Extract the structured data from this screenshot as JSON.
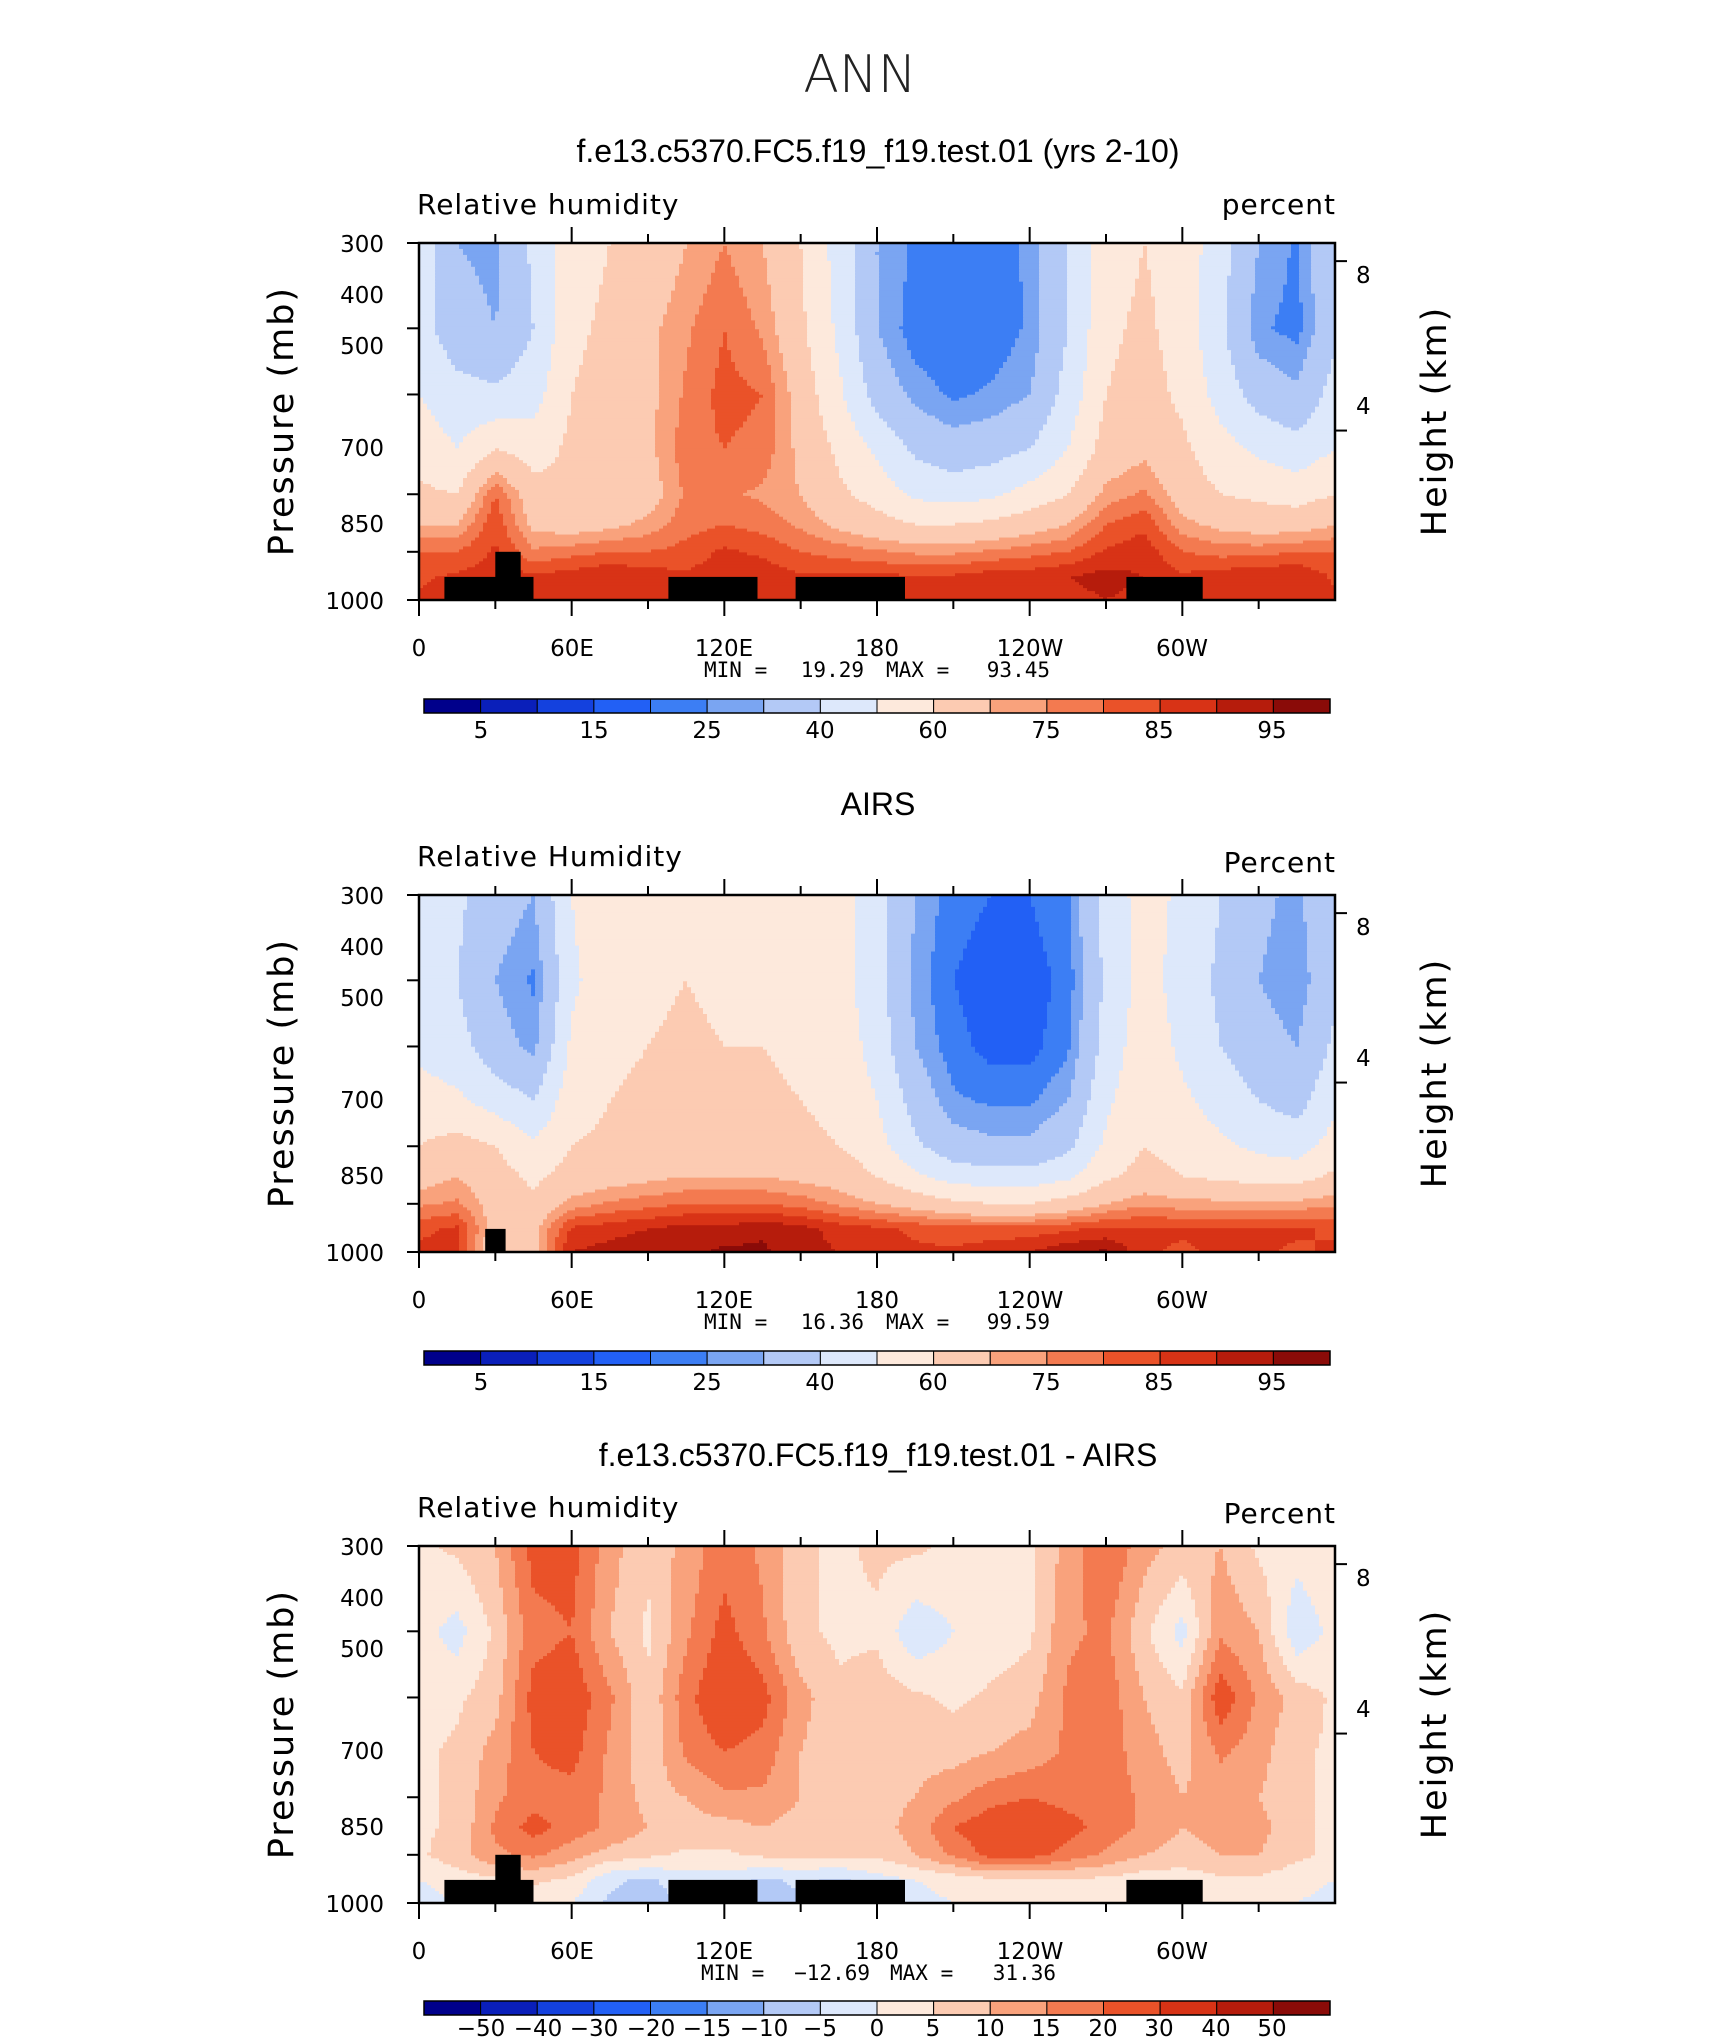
{
  "figure": {
    "title": "ANN",
    "colors": {
      "diverging": [
        "#00008b",
        "#0a1fba",
        "#1441de",
        "#2260f5",
        "#3c7ef4",
        "#7aa5f2",
        "#b3c9f6",
        "#dde8fb",
        "#fde9dc",
        "#fccbb2",
        "#f9a27c",
        "#f37a50",
        "#ea5229",
        "#d83316",
        "#b61c0c",
        "#8a0b08"
      ],
      "land_mask": "#000000"
    }
  },
  "panels": [
    {
      "title": "f.e13.c5370.FC5.f19_f19.test.01 (yrs 2-10)",
      "variable_label": "Relative humidity",
      "units_label": "percent",
      "ylabel": "Pressure (mb)",
      "ylabel_right": "Height (km)",
      "xticks": [
        "0",
        "60E",
        "120E",
        "180",
        "120W",
        "60W"
      ],
      "yticks": [
        "300",
        "400",
        "500",
        "700",
        "850",
        "1000"
      ],
      "yticks_right": [
        "8",
        "4"
      ],
      "min_label": "MIN =",
      "min_value": "19.29",
      "max_label": "MAX =",
      "max_value": "93.45",
      "colorbar_labels": [
        "5",
        "15",
        "25",
        "40",
        "60",
        "75",
        "85",
        "95"
      ]
    },
    {
      "title": "AIRS",
      "variable_label": "Relative Humidity",
      "units_label": "Percent",
      "ylabel": "Pressure (mb)",
      "ylabel_right": "Height (km)",
      "xticks": [
        "0",
        "60E",
        "120E",
        "180",
        "120W",
        "60W"
      ],
      "yticks": [
        "300",
        "400",
        "500",
        "700",
        "850",
        "1000"
      ],
      "yticks_right": [
        "8",
        "4"
      ],
      "min_label": "MIN =",
      "min_value": "16.36",
      "max_label": "MAX =",
      "max_value": "99.59",
      "colorbar_labels": [
        "5",
        "15",
        "25",
        "40",
        "60",
        "75",
        "85",
        "95"
      ]
    },
    {
      "title": "f.e13.c5370.FC5.f19_f19.test.01 - AIRS",
      "variable_label": "Relative humidity",
      "units_label": "Percent",
      "ylabel": "Pressure (mb)",
      "ylabel_right": "Height (km)",
      "xticks": [
        "0",
        "60E",
        "120E",
        "180",
        "120W",
        "60W"
      ],
      "yticks": [
        "300",
        "400",
        "500",
        "700",
        "850",
        "1000"
      ],
      "yticks_right": [
        "8",
        "4"
      ],
      "min_label": "MIN =",
      "min_value": "−12.69",
      "max_label": "MAX =",
      "max_value": "31.36",
      "colorbar_labels": [
        "−50",
        "−40",
        "−30",
        "−20",
        "−15",
        "−10",
        "−5",
        "0",
        "5",
        "10",
        "15",
        "20",
        "30",
        "40",
        "50"
      ]
    }
  ],
  "chart_data": [
    {
      "type": "heatmap",
      "title": "f.e13.c5370.FC5.f19_f19.test.01 (yrs 2-10)",
      "xlabel": "",
      "ylabel": "Pressure (mb)",
      "xlim": [
        0,
        360
      ],
      "ylim": [
        1000,
        300
      ],
      "y_scale": "log",
      "xticks": [
        0,
        60,
        120,
        180,
        240,
        300
      ],
      "yticks": [
        300,
        400,
        500,
        700,
        850,
        1000
      ],
      "levels": [
        5,
        10,
        15,
        20,
        25,
        30,
        40,
        50,
        60,
        70,
        75,
        80,
        85,
        90,
        95
      ],
      "min": 19.29,
      "max": 93.45,
      "grid_lon": [
        0,
        15,
        30,
        45,
        60,
        75,
        90,
        105,
        120,
        135,
        150,
        165,
        180,
        195,
        210,
        225,
        240,
        255,
        270,
        285,
        300,
        315,
        330,
        345,
        360
      ],
      "grid_p": [
        300,
        400,
        500,
        600,
        700,
        775,
        850,
        925,
        1000
      ],
      "values": [
        [
          48,
          30,
          28,
          42,
          56,
          60,
          64,
          70,
          75,
          70,
          60,
          46,
          30,
          24,
          22,
          22,
          26,
          40,
          56,
          60,
          56,
          44,
          30,
          24,
          40
        ],
        [
          44,
          34,
          30,
          40,
          58,
          62,
          68,
          74,
          80,
          74,
          62,
          48,
          30,
          22,
          20,
          21,
          26,
          40,
          58,
          62,
          56,
          42,
          26,
          23,
          38
        ],
        [
          50,
          44,
          42,
          46,
          60,
          64,
          68,
          76,
          82,
          80,
          66,
          52,
          36,
          28,
          24,
          26,
          30,
          44,
          60,
          64,
          58,
          46,
          36,
          32,
          44
        ],
        [
          56,
          50,
          60,
          56,
          62,
          64,
          68,
          78,
          80,
          78,
          68,
          58,
          48,
          38,
          34,
          36,
          40,
          50,
          64,
          68,
          62,
          54,
          48,
          44,
          50
        ],
        [
          62,
          60,
          80,
          64,
          60,
          62,
          66,
          76,
          76,
          74,
          70,
          62,
          56,
          48,
          46,
          48,
          54,
          60,
          72,
          76,
          66,
          60,
          58,
          56,
          60
        ],
        [
          70,
          70,
          84,
          68,
          66,
          68,
          72,
          78,
          80,
          78,
          74,
          68,
          64,
          60,
          60,
          62,
          66,
          70,
          80,
          84,
          72,
          68,
          66,
          66,
          70
        ],
        [
          80,
          80,
          86,
          76,
          78,
          80,
          80,
          82,
          86,
          84,
          80,
          78,
          76,
          74,
          74,
          76,
          78,
          80,
          86,
          88,
          80,
          78,
          78,
          80,
          80
        ],
        [
          84,
          86,
          88,
          86,
          88,
          90,
          88,
          86,
          88,
          88,
          86,
          86,
          86,
          86,
          86,
          88,
          88,
          90,
          92,
          90,
          86,
          88,
          90,
          90,
          84
        ],
        [
          86,
          88,
          88,
          88,
          88,
          88,
          88,
          86,
          86,
          86,
          86,
          86,
          86,
          86,
          86,
          86,
          86,
          88,
          90,
          88,
          86,
          88,
          88,
          88,
          86
        ]
      ],
      "land": [
        [
          10,
          45,
          925,
          1000
        ],
        [
          30,
          40,
          850,
          1000
        ],
        [
          98,
          133,
          925,
          1000
        ],
        [
          148,
          191,
          925,
          1000
        ],
        [
          278,
          308,
          925,
          1000
        ]
      ]
    },
    {
      "type": "heatmap",
      "title": "AIRS",
      "xlabel": "",
      "ylabel": "Pressure (mb)",
      "xlim": [
        0,
        360
      ],
      "ylim": [
        1000,
        300
      ],
      "y_scale": "log",
      "xticks": [
        0,
        60,
        120,
        180,
        240,
        300
      ],
      "yticks": [
        300,
        400,
        500,
        700,
        850,
        1000
      ],
      "levels": [
        5,
        10,
        15,
        20,
        25,
        30,
        40,
        50,
        60,
        70,
        75,
        80,
        85,
        90,
        95
      ],
      "min": 16.36,
      "max": 99.59,
      "grid_lon": [
        0,
        15,
        30,
        45,
        60,
        75,
        90,
        105,
        120,
        135,
        150,
        165,
        180,
        195,
        210,
        225,
        240,
        255,
        270,
        285,
        300,
        315,
        330,
        345,
        360
      ],
      "grid_p": [
        300,
        400,
        500,
        600,
        700,
        775,
        850,
        925,
        1000
      ],
      "values": [
        [
          46,
          42,
          34,
          30,
          50,
          58,
          58,
          60,
          58,
          58,
          56,
          54,
          44,
          30,
          22,
          20,
          20,
          24,
          44,
          54,
          48,
          40,
          32,
          28,
          40
        ],
        [
          44,
          40,
          30,
          24,
          48,
          56,
          58,
          60,
          58,
          58,
          56,
          54,
          44,
          28,
          20,
          17,
          17,
          22,
          42,
          54,
          46,
          38,
          30,
          26,
          38
        ],
        [
          48,
          44,
          34,
          28,
          52,
          58,
          60,
          62,
          60,
          60,
          58,
          56,
          46,
          30,
          22,
          18,
          18,
          24,
          44,
          56,
          48,
          40,
          34,
          30,
          42
        ],
        [
          54,
          52,
          46,
          40,
          56,
          60,
          62,
          64,
          62,
          62,
          60,
          58,
          50,
          36,
          26,
          24,
          24,
          30,
          48,
          58,
          52,
          46,
          40,
          36,
          48
        ],
        [
          60,
          64,
          60,
          52,
          60,
          62,
          64,
          66,
          64,
          64,
          62,
          60,
          54,
          42,
          34,
          32,
          32,
          38,
          52,
          60,
          56,
          52,
          48,
          46,
          54
        ],
        [
          66,
          70,
          64,
          58,
          64,
          66,
          68,
          70,
          70,
          70,
          68,
          66,
          60,
          52,
          46,
          44,
          44,
          48,
          58,
          64,
          60,
          58,
          56,
          56,
          62
        ],
        [
          74,
          76,
          66,
          62,
          72,
          76,
          78,
          80,
          80,
          80,
          78,
          74,
          70,
          66,
          62,
          60,
          60,
          64,
          70,
          74,
          72,
          72,
          72,
          72,
          74
        ],
        [
          84,
          86,
          66,
          68,
          86,
          88,
          90,
          92,
          92,
          94,
          92,
          88,
          86,
          84,
          82,
          82,
          82,
          84,
          86,
          86,
          86,
          86,
          86,
          86,
          84
        ],
        [
          86,
          86,
          60,
          68,
          90,
          92,
          94,
          94,
          96,
          96,
          92,
          90,
          88,
          86,
          86,
          88,
          90,
          94,
          96,
          86,
          84,
          86,
          86,
          84,
          86
        ]
      ],
      "land": [
        [
          26,
          34,
          925,
          1000
        ]
      ]
    },
    {
      "type": "heatmap",
      "title": "f.e13.c5370.FC5.f19_f19.test.01 - AIRS",
      "xlabel": "",
      "ylabel": "Pressure (mb)",
      "xlim": [
        0,
        360
      ],
      "ylim": [
        1000,
        300
      ],
      "y_scale": "log",
      "xticks": [
        0,
        60,
        120,
        180,
        240,
        300
      ],
      "yticks": [
        300,
        400,
        500,
        700,
        850,
        1000
      ],
      "levels": [
        -50,
        -40,
        -30,
        -20,
        -15,
        -10,
        -5,
        0,
        5,
        10,
        15,
        20,
        30,
        40,
        50
      ],
      "min": -12.69,
      "max": 31.36,
      "grid_lon": [
        0,
        15,
        30,
        45,
        60,
        75,
        90,
        105,
        120,
        135,
        150,
        165,
        180,
        195,
        210,
        225,
        240,
        255,
        270,
        285,
        300,
        315,
        330,
        345,
        360
      ],
      "grid_p": [
        300,
        400,
        500,
        600,
        700,
        775,
        850,
        925,
        1000
      ],
      "values": [
        [
          4,
          6,
          10,
          22,
          22,
          12,
          6,
          12,
          18,
          14,
          6,
          4,
          6,
          6,
          4,
          4,
          4,
          12,
          20,
          12,
          8,
          10,
          4,
          2,
          4
        ],
        [
          2,
          -2,
          6,
          18,
          20,
          10,
          4,
          14,
          22,
          16,
          6,
          4,
          4,
          -4,
          0,
          2,
          4,
          14,
          16,
          6,
          -2,
          14,
          10,
          -4,
          2
        ],
        [
          2,
          4,
          8,
          22,
          24,
          16,
          6,
          18,
          26,
          22,
          12,
          6,
          8,
          6,
          4,
          6,
          8,
          16,
          18,
          10,
          6,
          24,
          14,
          8,
          4
        ],
        [
          4,
          6,
          12,
          20,
          22,
          14,
          6,
          16,
          20,
          18,
          10,
          6,
          8,
          8,
          8,
          10,
          12,
          16,
          18,
          12,
          8,
          16,
          12,
          6,
          4
        ],
        [
          4,
          6,
          14,
          18,
          18,
          14,
          8,
          10,
          14,
          14,
          10,
          6,
          8,
          10,
          14,
          18,
          20,
          18,
          18,
          14,
          10,
          12,
          10,
          6,
          4
        ],
        [
          4,
          6,
          16,
          22,
          18,
          14,
          10,
          8,
          8,
          10,
          8,
          6,
          8,
          12,
          20,
          24,
          26,
          22,
          18,
          14,
          10,
          12,
          12,
          6,
          4
        ],
        [
          4,
          8,
          14,
          16,
          12,
          8,
          6,
          4,
          4,
          6,
          6,
          6,
          6,
          10,
          16,
          22,
          22,
          18,
          14,
          10,
          8,
          10,
          10,
          6,
          4
        ],
        [
          0,
          2,
          4,
          6,
          4,
          -4,
          -6,
          -2,
          -2,
          -6,
          -4,
          -6,
          -2,
          0,
          2,
          4,
          4,
          4,
          4,
          2,
          2,
          4,
          4,
          2,
          0
        ],
        [
          -2,
          0,
          2,
          2,
          0,
          -6,
          -8,
          -4,
          -4,
          -8,
          -6,
          -8,
          -4,
          -2,
          0,
          0,
          0,
          0,
          0,
          0,
          0,
          0,
          0,
          0,
          -2
        ]
      ],
      "land": [
        [
          10,
          45,
          925,
          1000
        ],
        [
          30,
          40,
          850,
          1000
        ],
        [
          98,
          133,
          925,
          1000
        ],
        [
          148,
          191,
          925,
          1000
        ],
        [
          278,
          308,
          925,
          1000
        ]
      ]
    }
  ]
}
